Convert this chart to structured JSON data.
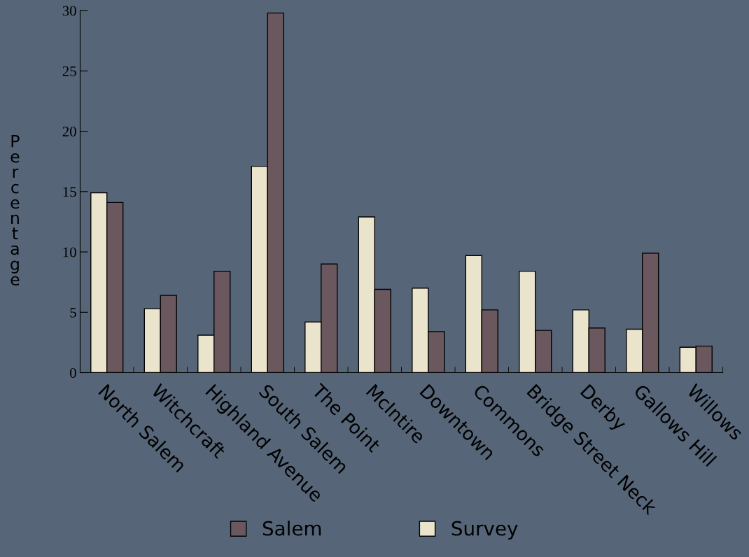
{
  "chart_data": {
    "type": "bar",
    "ylabel": "Percentage",
    "categories": [
      "North Salem",
      "Witchcraft",
      "Highland Avenue",
      "South Salem",
      "The Point",
      "McIntire",
      "Downtown",
      "Commons",
      "Bridge Street Neck",
      "Derby",
      "Gallows Hill",
      "Willows"
    ],
    "series": [
      {
        "name": "Survey",
        "color": "#ebe4cd",
        "values": [
          14.9,
          5.3,
          3.1,
          17.1,
          4.2,
          12.9,
          7.0,
          9.7,
          8.4,
          5.2,
          3.6,
          2.1
        ]
      },
      {
        "name": "Salem",
        "color": "#6a585e",
        "values": [
          14.1,
          6.4,
          8.4,
          29.8,
          9.0,
          6.9,
          3.4,
          5.2,
          3.5,
          3.7,
          9.9,
          2.2
        ]
      }
    ],
    "ylim": [
      0,
      30
    ],
    "yticks": [
      0,
      5,
      10,
      15,
      20,
      25,
      30
    ],
    "grid": false,
    "legend": "bottom"
  }
}
